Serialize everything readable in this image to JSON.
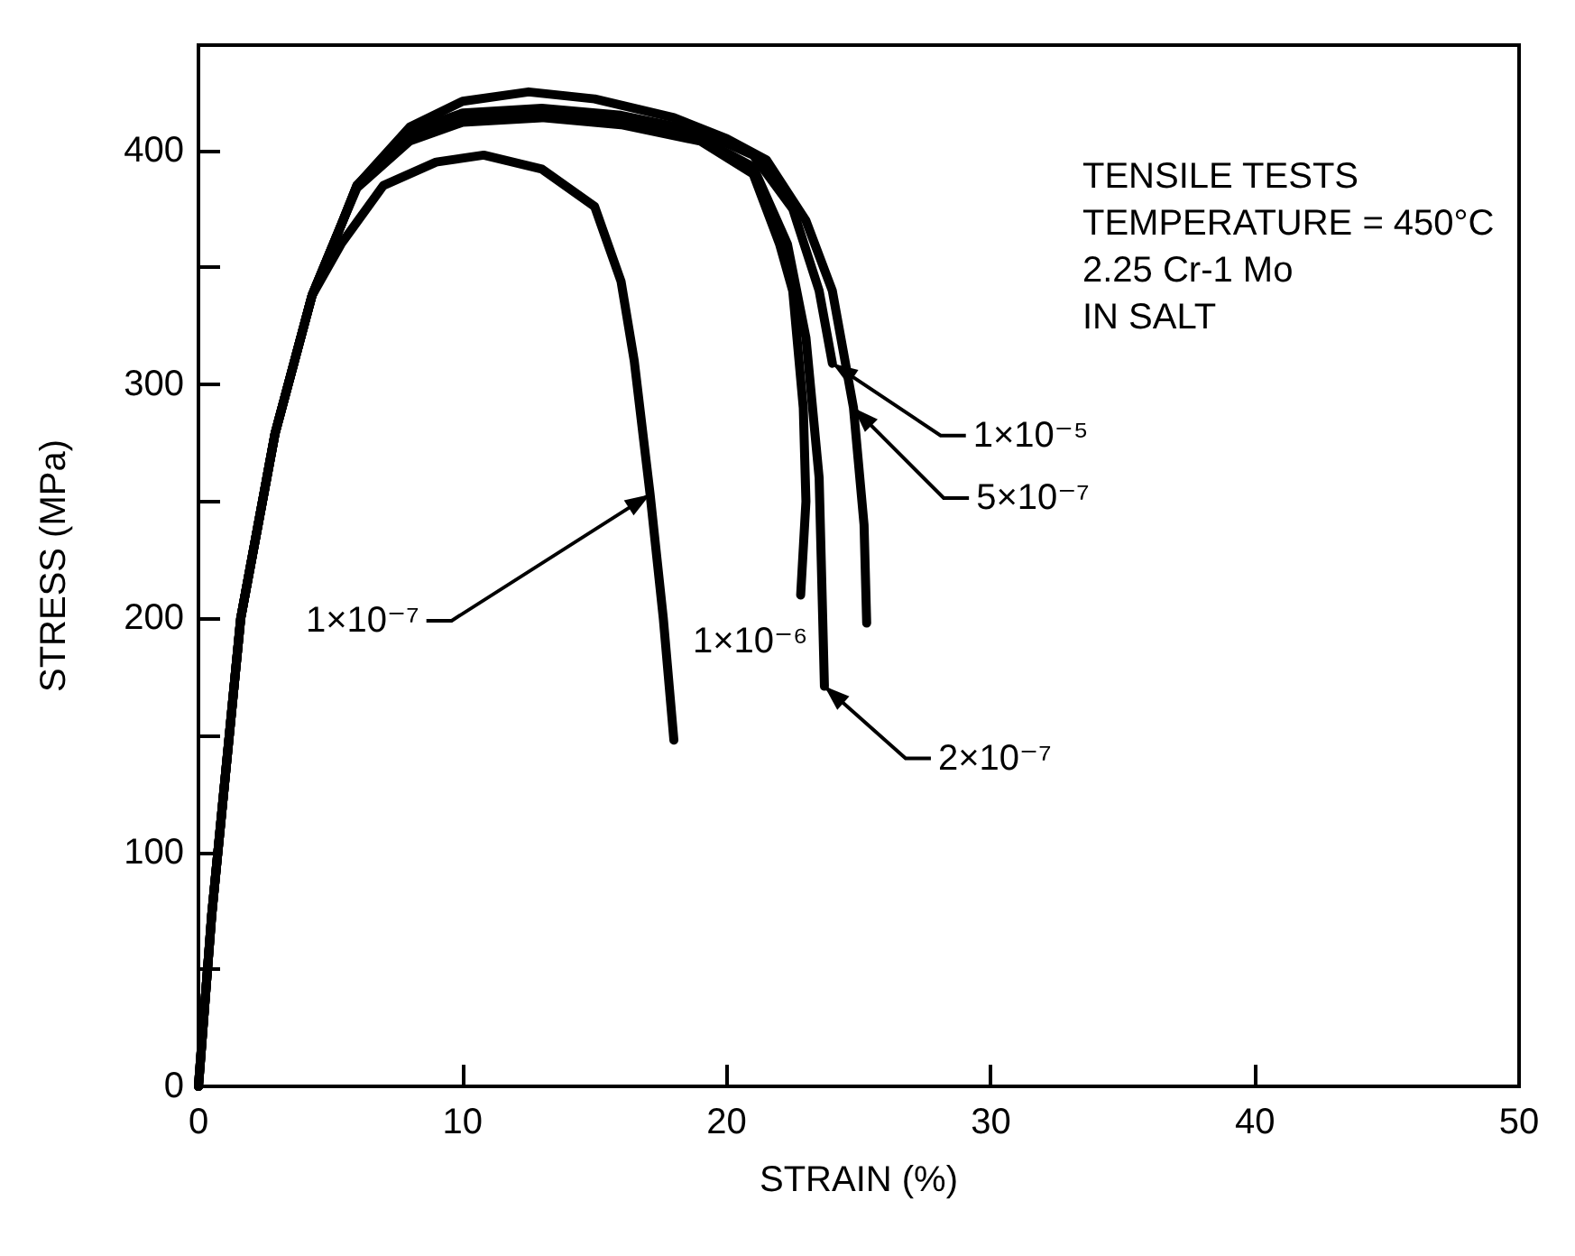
{
  "chart_data": {
    "type": "line",
    "xlabel": "STRAIN (%)",
    "ylabel": "STRESS (MPa)",
    "xlim": [
      0,
      50
    ],
    "xticks": [
      0,
      10,
      20,
      30,
      40,
      50
    ],
    "ylim": [
      0,
      445
    ],
    "yticks": [
      0,
      {
        "value": 50,
        "label": null
      },
      100,
      {
        "value": 150,
        "label": null
      },
      200,
      {
        "value": 250,
        "label": null
      },
      300,
      {
        "value": 350,
        "label": null
      },
      400
    ],
    "grid": false,
    "legend": false,
    "marker": "none",
    "line_style": "solid",
    "annotations": [
      "TENSILE TESTS",
      "TEMPERATURE = 450°C",
      "2.25 Cr-1 Mo",
      "IN SALT"
    ],
    "series": [
      {
        "name": "1×10⁻⁵",
        "color": "#000000",
        "x": [
          0,
          0.5,
          1.6,
          2.9,
          4.3,
          5.4,
          6,
          8,
          10,
          13,
          16,
          19,
          21,
          22.5,
          23.5,
          24
        ],
        "values": [
          0,
          73,
          200,
          279,
          338,
          368,
          385,
          408,
          416,
          418,
          415,
          408,
          398,
          375,
          340,
          309
        ]
      },
      {
        "name": "5×10⁻⁷",
        "color": "#000000",
        "x": [
          0,
          0.5,
          1.6,
          2.9,
          4.3,
          5.4,
          6,
          8,
          10,
          12.5,
          15,
          18,
          20,
          21.5,
          23,
          24,
          24.8,
          25.2,
          25.3
        ],
        "values": [
          0,
          73,
          200,
          279,
          338,
          368,
          385,
          410,
          421,
          425,
          422,
          414,
          405,
          396,
          370,
          340,
          290,
          240,
          198
        ]
      },
      {
        "name": "2×10⁻⁷",
        "color": "#000000",
        "x": [
          0,
          0.5,
          1.6,
          2.9,
          4.3,
          5.4,
          6,
          8,
          10,
          13,
          16,
          19,
          21,
          22.3,
          23,
          23.5,
          23.7
        ],
        "values": [
          0,
          73,
          200,
          279,
          338,
          368,
          385,
          405,
          414,
          416,
          412,
          405,
          393,
          360,
          320,
          260,
          171
        ]
      },
      {
        "name": "1×10⁻⁶",
        "color": "#000000",
        "x": [
          0,
          0.5,
          1.6,
          2.9,
          4.3,
          5.4,
          6,
          8,
          10,
          13,
          16,
          19,
          21,
          22,
          22.5,
          22.9,
          23,
          22.8
        ],
        "values": [
          0,
          73,
          200,
          279,
          338,
          368,
          384,
          404,
          412,
          414,
          411,
          404,
          390,
          360,
          340,
          290,
          250,
          210
        ]
      },
      {
        "name": "1×10⁻⁷",
        "color": "#000000",
        "x": [
          0,
          0.5,
          1.6,
          2.9,
          4.3,
          5.4,
          7,
          9,
          10.8,
          13,
          15,
          16,
          16.5,
          17.1,
          17.6,
          18
        ],
        "values": [
          0,
          73,
          200,
          279,
          338,
          360,
          385,
          395,
          398,
          392,
          376,
          344,
          310,
          253,
          200,
          148
        ]
      }
    ]
  }
}
